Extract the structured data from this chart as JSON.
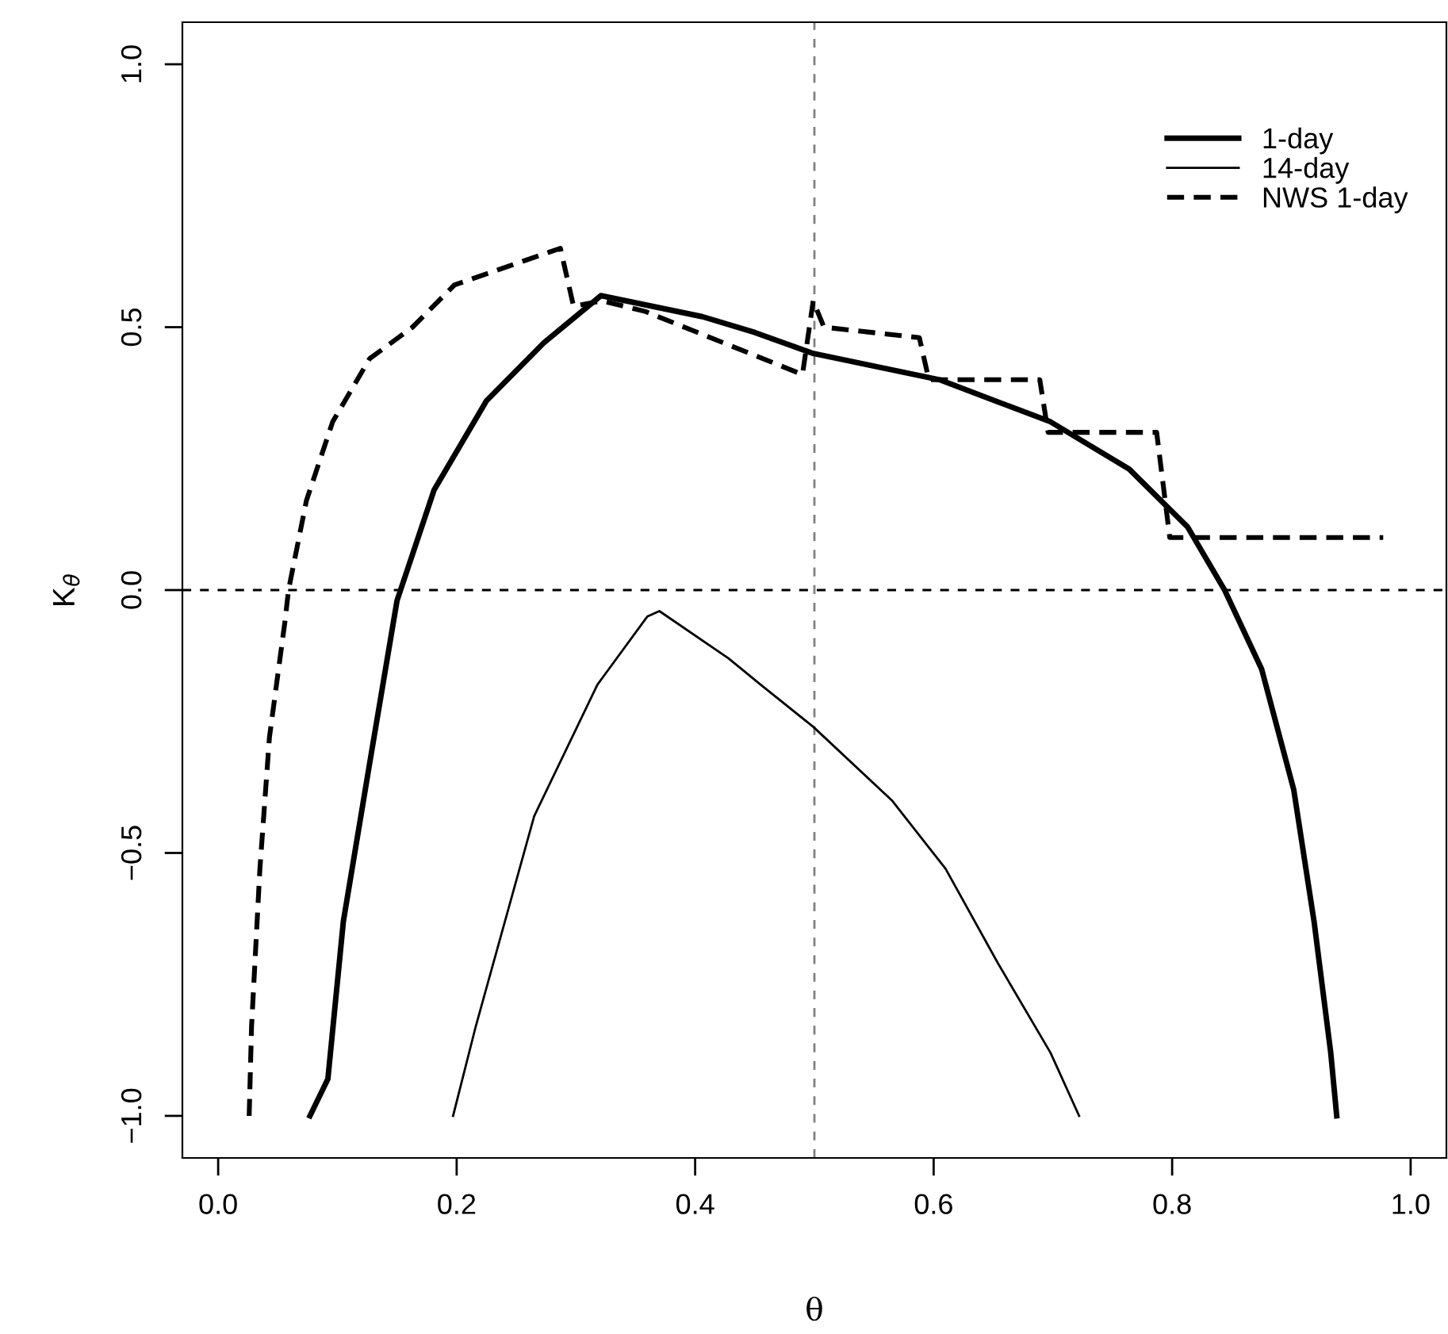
{
  "chart_data": {
    "type": "line",
    "xlabel": "θ",
    "ylabel": "K$_{θ}$",
    "xlim": [
      -0.03,
      1.03
    ],
    "ylim": [
      -1.08,
      1.08
    ],
    "xticks": [
      {
        "value": 0,
        "label": "0.0"
      },
      0.2,
      0.4,
      0.6,
      0.8,
      {
        "value": 1,
        "label": "1.0"
      }
    ],
    "yticks": [
      {
        "value": -1,
        "label": "−1.0"
      },
      {
        "value": -0.5,
        "label": "−0.5"
      },
      {
        "value": 0,
        "label": "0.0"
      },
      0.5,
      {
        "value": 1,
        "label": "1.0"
      }
    ],
    "grid": false,
    "legend": "top right",
    "marker": "none",
    "ref_lines": [
      {
        "axis": "x",
        "value": 0.5,
        "color": "#808080",
        "line_style": "dashed"
      },
      {
        "axis": "y",
        "value": 0,
        "color": "#000000",
        "line_style": "dashed"
      }
    ],
    "series": [
      {
        "name": "1-day",
        "color": "#000000",
        "line_style": "solid",
        "x": [
          0.077,
          0.092,
          0.105,
          0.127,
          0.15,
          0.181,
          0.225,
          0.273,
          0.321,
          0.406,
          0.45,
          0.499,
          0.605,
          0.698,
          0.764,
          0.813,
          0.844,
          0.875,
          0.902,
          0.919,
          0.933,
          0.938
        ],
        "values": [
          -1.0,
          -0.93,
          -0.63,
          -0.33,
          -0.02,
          0.19,
          0.36,
          0.47,
          0.56,
          0.52,
          0.49,
          0.45,
          0.4,
          0.32,
          0.23,
          0.12,
          0.0,
          -0.15,
          -0.38,
          -0.63,
          -0.88,
          -1.0
        ]
      },
      {
        "name": "14-day",
        "color": "#000000",
        "line_style": "solid",
        "x": [
          0.197,
          0.216,
          0.265,
          0.318,
          0.36,
          0.37,
          0.428,
          0.455,
          0.499,
          0.565,
          0.61,
          0.654,
          0.698,
          0.722
        ],
        "values": [
          -1.0,
          -0.83,
          -0.43,
          -0.18,
          -0.05,
          -0.04,
          -0.13,
          -0.18,
          -0.26,
          -0.4,
          -0.53,
          -0.71,
          -0.88,
          -1.0
        ]
      },
      {
        "name": "NWS 1-day",
        "color": "#000000",
        "line_style": "dashed",
        "x": [
          0.026,
          0.028,
          0.035,
          0.043,
          0.056,
          0.059,
          0.074,
          0.096,
          0.127,
          0.163,
          0.198,
          0.287,
          0.298,
          0.322,
          0.358,
          0.49,
          0.499,
          0.508,
          0.588,
          0.596,
          0.689,
          0.696,
          0.787,
          0.798,
          0.977
        ],
        "values": [
          -1.0,
          -0.83,
          -0.53,
          -0.28,
          -0.06,
          0.0,
          0.17,
          0.32,
          0.44,
          0.5,
          0.58,
          0.65,
          0.54,
          0.55,
          0.53,
          0.41,
          0.55,
          0.5,
          0.48,
          0.4,
          0.4,
          0.3,
          0.3,
          0.1,
          0.1
        ]
      }
    ]
  }
}
